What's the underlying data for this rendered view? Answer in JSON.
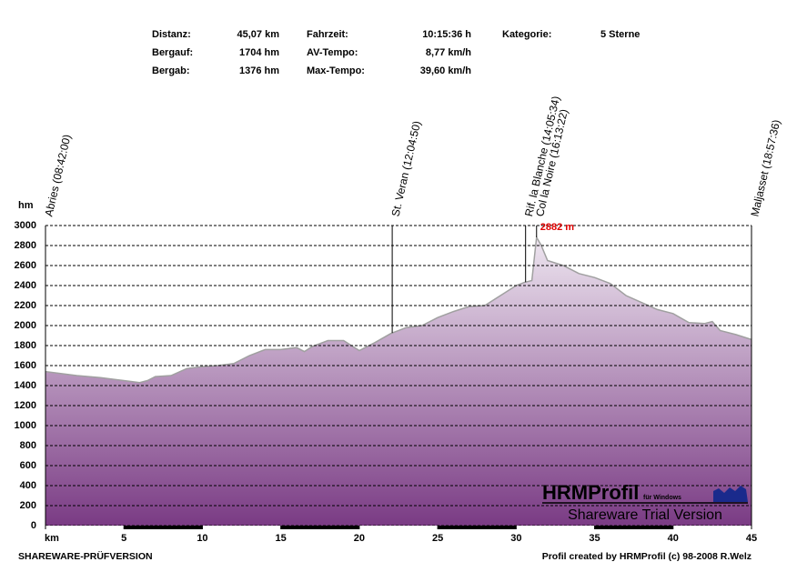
{
  "chart_data": {
    "type": "area",
    "header": [
      {
        "label": "Distanz:",
        "value": "45,07 km"
      },
      {
        "label": "Bergauf:",
        "value": "1704 hm"
      },
      {
        "label": "Bergab:",
        "value": "1376 hm"
      },
      {
        "label": "Fahrzeit:",
        "value": "10:15:36 h"
      },
      {
        "label": "AV-Tempo:",
        "value": "8,77 km/h"
      },
      {
        "label": "Max-Tempo:",
        "value": "39,60 km/h"
      },
      {
        "label": "Kategorie:",
        "value": "5 Sterne"
      }
    ],
    "y_label": "hm",
    "x": [
      0,
      2,
      3.5,
      5,
      6,
      6.5,
      7,
      8,
      9,
      10,
      11,
      12,
      13,
      14,
      15,
      16,
      16.5,
      17,
      18,
      19,
      20,
      21,
      22,
      23,
      24,
      25,
      26,
      27,
      28,
      29,
      30,
      30.5,
      31,
      31.3,
      31.6,
      32,
      33,
      34,
      35,
      36,
      37,
      38,
      39,
      40,
      41,
      42,
      42.5,
      43,
      44,
      45
    ],
    "values": [
      1540,
      1500,
      1480,
      1450,
      1430,
      1450,
      1490,
      1500,
      1570,
      1590,
      1600,
      1620,
      1700,
      1760,
      1760,
      1780,
      1740,
      1790,
      1850,
      1850,
      1750,
      1830,
      1920,
      1980,
      2000,
      2080,
      2140,
      2190,
      2200,
      2300,
      2400,
      2430,
      2450,
      2882,
      2800,
      2650,
      2600,
      2520,
      2480,
      2420,
      2300,
      2230,
      2160,
      2120,
      2030,
      2020,
      2040,
      1950,
      1910,
      1860
    ],
    "color_top": "#eee6f0",
    "color_bottom": "#7a3b84",
    "line_color": "#a0a0a0",
    "xlim": [
      0,
      45
    ],
    "ylim": [
      0,
      3000
    ],
    "xticks": [
      {
        "value": 0,
        "label": "km"
      },
      5,
      10,
      15,
      20,
      25,
      30,
      35,
      40,
      45
    ],
    "yticks": [
      0,
      200,
      400,
      600,
      800,
      1000,
      1200,
      1400,
      1600,
      1800,
      2000,
      2200,
      2400,
      2600,
      2800,
      3000
    ],
    "grid": true,
    "waypoints": [
      {
        "x": 0,
        "label": "Abries (08:42:00)"
      },
      {
        "x": 22.1,
        "label": "St. Veran (12:04:50)"
      },
      {
        "x": 30.6,
        "label": "Rif. la Blanche (14:05:34)"
      },
      {
        "x": 31.3,
        "label": "Col la Noire (16:13:22)"
      },
      {
        "x": 45,
        "label": "Maljasset (18:57:36)"
      }
    ],
    "peak": {
      "x": 31.3,
      "value": 2882,
      "label": "2882 m"
    },
    "watermark": {
      "title": "HRMProfil",
      "subtitle": "für Windows",
      "text": "Shareware Trial  Version"
    },
    "footer_left": "SHAREWARE-PRÜFVERSION",
    "footer_right": "Profil created by HRMProfil (c) 98-2008 R.Welz"
  }
}
